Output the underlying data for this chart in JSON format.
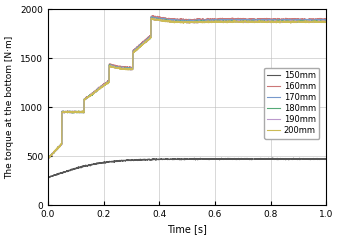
{
  "title": "",
  "xlabel": "Time [s]",
  "ylabel": "The torque at the bottom [N·m]",
  "xlim": [
    0.0,
    1.0
  ],
  "ylim": [
    0,
    2000
  ],
  "yticks": [
    0,
    500,
    1000,
    1500,
    2000
  ],
  "xticks": [
    0.0,
    0.2,
    0.4,
    0.6,
    0.8,
    1.0
  ],
  "series": [
    {
      "label": "150mm",
      "color": "#555555",
      "lw": 0.8
    },
    {
      "label": "160mm",
      "color": "#cc7777",
      "lw": 0.8
    },
    {
      "label": "170mm",
      "color": "#7799cc",
      "lw": 0.8
    },
    {
      "label": "180mm",
      "color": "#55aa77",
      "lw": 0.8
    },
    {
      "label": "190mm",
      "color": "#bb99cc",
      "lw": 0.8
    },
    {
      "label": "200mm",
      "color": "#ccbb55",
      "lw": 0.8
    }
  ]
}
